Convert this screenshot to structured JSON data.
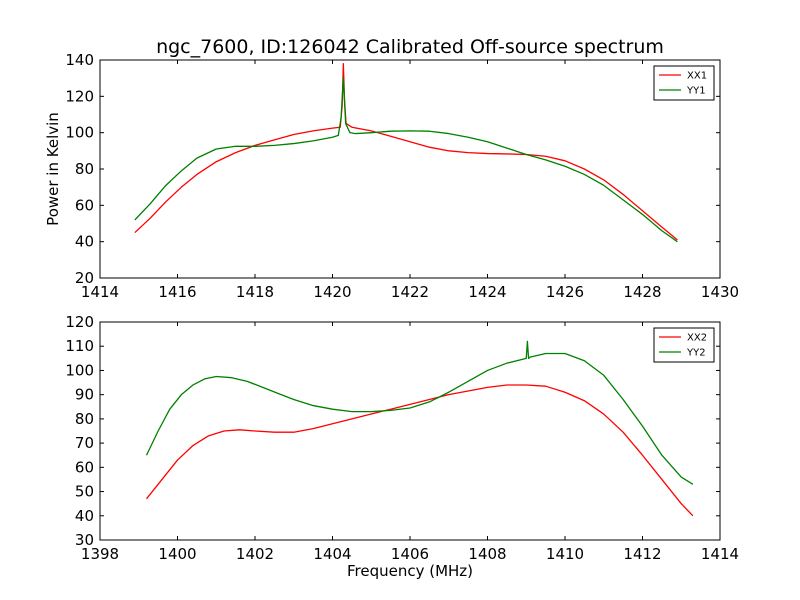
{
  "chart_data": [
    {
      "type": "line",
      "title": "ngc_7600, ID:126042 Calibrated Off-source spectrum",
      "xlabel": "",
      "ylabel": "Power in Kelvin",
      "xlim": [
        1414,
        1430
      ],
      "ylim": [
        20,
        140
      ],
      "xticks": [
        "1414",
        "1416",
        "1418",
        "1420",
        "1422",
        "1424",
        "1426",
        "1428",
        "1430"
      ],
      "yticks": [
        "20",
        "40",
        "60",
        "80",
        "100",
        "120",
        "140"
      ],
      "grid": false,
      "legend_position": "top-right",
      "series": [
        {
          "name": "XX1",
          "color": "#ff0000",
          "x": [
            1414.9,
            1415.3,
            1415.7,
            1416.1,
            1416.5,
            1417.0,
            1417.5,
            1418.0,
            1418.5,
            1419.0,
            1419.5,
            1420.0,
            1420.2,
            1420.25,
            1420.28,
            1420.31,
            1420.35,
            1420.5,
            1421.0,
            1421.5,
            1422.0,
            1422.5,
            1423.0,
            1423.5,
            1424.0,
            1424.5,
            1425.0,
            1425.5,
            1426.0,
            1426.5,
            1427.0,
            1427.5,
            1428.0,
            1428.5,
            1428.9
          ],
          "y": [
            45,
            53,
            62,
            70,
            77,
            84,
            89,
            93,
            96,
            99,
            101,
            102.5,
            103,
            115,
            138,
            118,
            105,
            103,
            101,
            98,
            95,
            92,
            90,
            89,
            88.5,
            88.3,
            88,
            87,
            84.5,
            80,
            74,
            66,
            57,
            48,
            41
          ]
        },
        {
          "name": "YY1",
          "color": "#008000",
          "x": [
            1414.9,
            1415.3,
            1415.7,
            1416.1,
            1416.5,
            1417.0,
            1417.5,
            1418.0,
            1418.5,
            1419.0,
            1419.5,
            1420.0,
            1420.15,
            1420.22,
            1420.28,
            1420.34,
            1420.45,
            1420.6,
            1421.0,
            1421.5,
            1422.0,
            1422.5,
            1423.0,
            1423.5,
            1424.0,
            1424.5,
            1425.0,
            1425.5,
            1426.0,
            1426.5,
            1427.0,
            1427.5,
            1428.0,
            1428.5,
            1428.9
          ],
          "y": [
            52,
            61,
            71,
            79,
            86,
            91,
            92.5,
            92.5,
            93,
            94,
            95.5,
            97.5,
            98.5,
            108,
            130,
            105,
            100,
            99.5,
            100,
            100.8,
            101,
            100.8,
            99.5,
            97.5,
            95,
            91.5,
            88,
            85,
            81.5,
            77,
            71,
            63,
            55,
            46,
            40
          ]
        }
      ]
    },
    {
      "type": "line",
      "title": "",
      "xlabel": "Frequency (MHz)",
      "ylabel": "",
      "xlim": [
        1398,
        1414
      ],
      "ylim": [
        30,
        120
      ],
      "xticks": [
        "1398",
        "1400",
        "1402",
        "1404",
        "1406",
        "1408",
        "1410",
        "1412",
        "1414"
      ],
      "yticks": [
        "30",
        "40",
        "50",
        "60",
        "70",
        "80",
        "90",
        "100",
        "110",
        "120"
      ],
      "grid": false,
      "legend_position": "top-right",
      "series": [
        {
          "name": "XX2",
          "color": "#ff0000",
          "x": [
            1399.2,
            1399.6,
            1400.0,
            1400.4,
            1400.8,
            1401.2,
            1401.6,
            1402.0,
            1402.5,
            1403.0,
            1403.5,
            1404.0,
            1404.5,
            1405.0,
            1405.5,
            1406.0,
            1406.5,
            1407.0,
            1407.5,
            1408.0,
            1408.5,
            1409.0,
            1409.5,
            1410.0,
            1410.5,
            1411.0,
            1411.5,
            1412.0,
            1412.5,
            1413.0,
            1413.3
          ],
          "y": [
            47,
            55,
            63,
            69,
            73,
            75,
            75.5,
            75,
            74.5,
            74.5,
            76,
            78,
            80,
            82,
            84,
            86,
            88,
            90,
            91.5,
            93,
            94,
            94,
            93.5,
            91,
            87.5,
            82,
            74.5,
            65,
            55,
            45,
            40
          ]
        },
        {
          "name": "YY2",
          "color": "#008000",
          "x": [
            1399.2,
            1399.5,
            1399.8,
            1400.1,
            1400.4,
            1400.7,
            1401.0,
            1401.4,
            1401.8,
            1402.2,
            1402.6,
            1403.0,
            1403.5,
            1404.0,
            1404.5,
            1405.0,
            1405.5,
            1406.0,
            1406.5,
            1407.0,
            1407.5,
            1408.0,
            1408.5,
            1409.0,
            1409.03,
            1409.06,
            1409.1,
            1409.5,
            1410.0,
            1410.5,
            1411.0,
            1411.5,
            1412.0,
            1412.5,
            1413.0,
            1413.3
          ],
          "y": [
            65,
            75,
            84,
            90,
            94,
            96.5,
            97.5,
            97,
            95.5,
            93,
            90.5,
            88,
            85.5,
            84,
            83,
            83,
            83.5,
            84.5,
            87,
            91,
            95.5,
            100,
            103,
            105,
            112,
            105,
            105.5,
            107,
            107,
            104,
            98,
            88,
            77,
            65,
            56,
            53
          ]
        }
      ]
    }
  ]
}
